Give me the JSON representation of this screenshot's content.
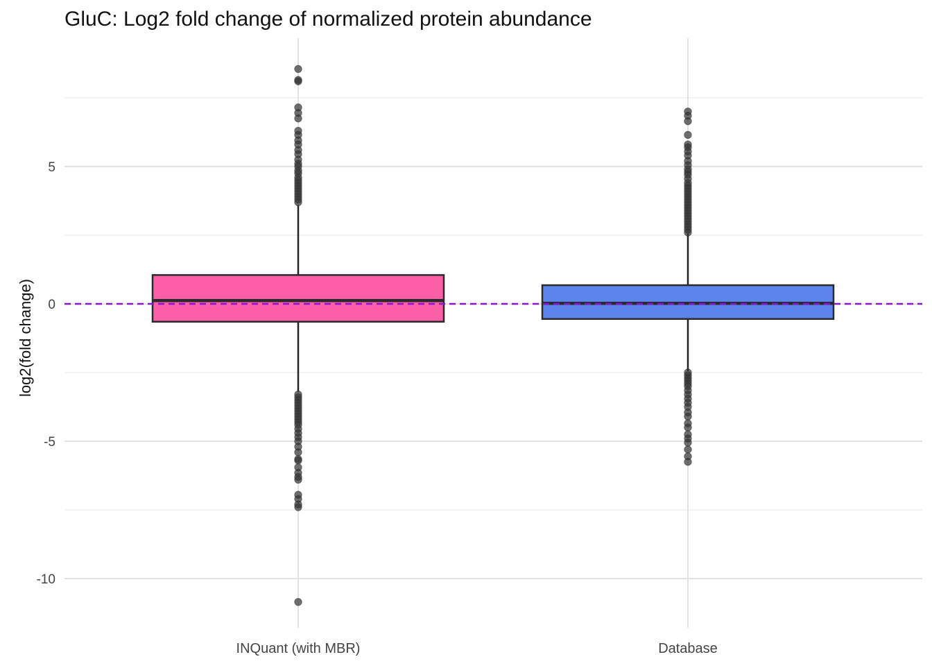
{
  "chart_data": {
    "type": "box",
    "title": "GluC: Log2 fold change of normalized protein abundance",
    "xlabel": "",
    "ylabel": "log2(fold change)",
    "ylim": [
      -11.2,
      10.2
    ],
    "yticks": [
      -10,
      -5,
      0,
      5
    ],
    "ytick_labels": [
      "-10",
      "-5",
      "0",
      "5"
    ],
    "grid": true,
    "reference_line": {
      "y": 0,
      "style": "dashed",
      "color": "#8a12d4"
    },
    "categories": [
      "INQuant (with MBR)",
      "Database"
    ],
    "boxes": [
      {
        "name": "INQuant (with MBR)",
        "color": "#fc5fa8",
        "q1": -0.65,
        "median": 0.12,
        "q3": 1.05,
        "whisker_low": -3.2,
        "whisker_high": 3.6,
        "outliers": [
          8.55,
          8.15,
          8.1,
          7.15,
          6.95,
          6.75,
          6.3,
          6.15,
          5.95,
          5.8,
          5.6,
          5.45,
          5.25,
          5.1,
          5.0,
          4.85,
          4.75,
          4.6,
          4.5,
          4.4,
          4.3,
          4.2,
          4.1,
          4.0,
          3.9,
          3.8,
          3.7,
          -3.3,
          -3.4,
          -3.5,
          -3.6,
          -3.7,
          -3.8,
          -3.9,
          -4.0,
          -4.1,
          -4.2,
          -4.3,
          -4.4,
          -4.55,
          -4.7,
          -4.85,
          -5.0,
          -5.2,
          -5.4,
          -5.65,
          -5.7,
          -5.95,
          -6.15,
          -6.3,
          -6.4,
          -6.95,
          -7.1,
          -7.3,
          -7.4,
          -10.85
        ]
      },
      {
        "name": "Database",
        "color": "#5b85eb",
        "q1": -0.55,
        "median": 0.02,
        "q3": 0.68,
        "whisker_low": -2.45,
        "whisker_high": 2.55,
        "outliers": [
          7.0,
          6.85,
          6.65,
          6.15,
          5.8,
          5.7,
          5.55,
          5.4,
          5.2,
          5.05,
          4.9,
          4.8,
          4.7,
          4.55,
          4.4,
          4.3,
          4.2,
          4.1,
          4.0,
          3.9,
          3.8,
          3.7,
          3.6,
          3.5,
          3.4,
          3.3,
          3.2,
          3.1,
          3.0,
          2.9,
          2.8,
          2.7,
          2.6,
          -2.5,
          -2.6,
          -2.7,
          -2.8,
          -2.9,
          -3.0,
          -3.15,
          -3.3,
          -3.45,
          -3.6,
          -3.75,
          -3.95,
          -4.1,
          -4.35,
          -4.5,
          -4.75,
          -4.9,
          -5.05,
          -5.3,
          -5.55,
          -5.75
        ]
      }
    ]
  }
}
